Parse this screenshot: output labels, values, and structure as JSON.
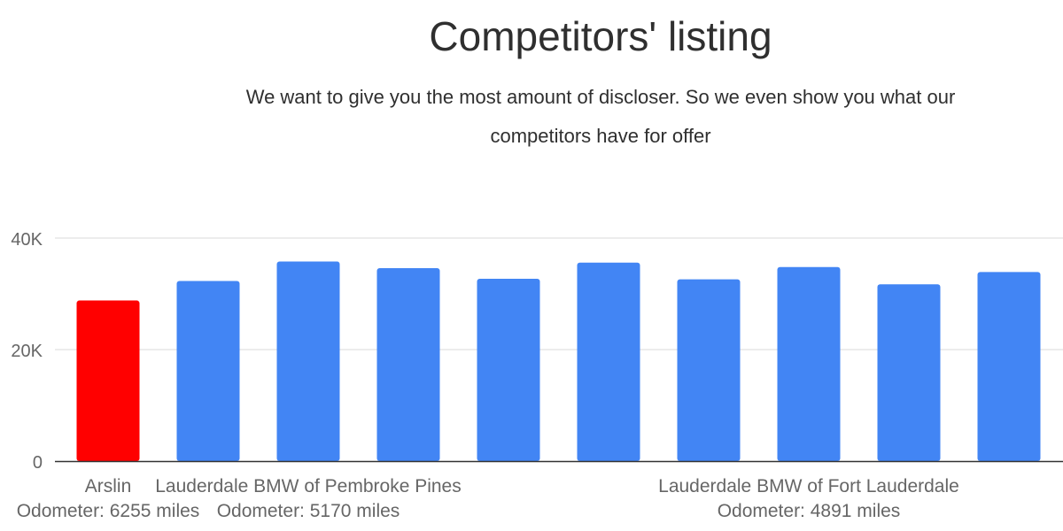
{
  "chart_data": {
    "type": "bar",
    "title": "Competitors' listing",
    "subtitle": "We want to give you the most amount of discloser. So we even show you what our competitors have for offer",
    "xlabel": "",
    "ylabel": "",
    "ylim": [
      0,
      40000
    ],
    "yticks": [
      {
        "value": 0,
        "label": "0"
      },
      {
        "value": 20000,
        "label": "20K"
      },
      {
        "value": 40000,
        "label": "40K"
      }
    ],
    "grid": true,
    "legend": "none",
    "categories": [
      "Arslin\nOdometer: 6255 miles",
      "",
      "Lauderdale BMW of Pembroke Pines\nOdometer: 5170 miles",
      "",
      "",
      "",
      "",
      "Lauderdale BMW of Fort Lauderdale\nOdometer: 4891 miles",
      "",
      ""
    ],
    "values": [
      28800,
      32300,
      35800,
      34600,
      32700,
      35600,
      32600,
      34800,
      31700,
      33900
    ],
    "bar_colors": [
      "#ff0000",
      "#4285f4",
      "#4285f4",
      "#4285f4",
      "#4285f4",
      "#4285f4",
      "#4285f4",
      "#4285f4",
      "#4285f4",
      "#4285f4"
    ]
  }
}
